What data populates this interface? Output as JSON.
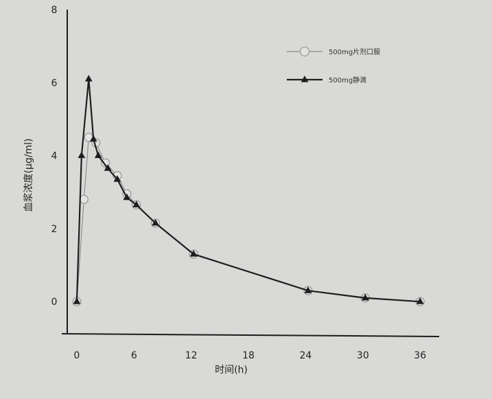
{
  "chart_data": {
    "type": "line",
    "title": "",
    "xlabel": "时间(h)",
    "ylabel": "血浆浓度(μg/ml)",
    "xlim": [
      -1,
      38
    ],
    "ylim": [
      -0.9,
      8
    ],
    "xticks": [
      "0",
      "6",
      "12",
      "18",
      "24",
      "30",
      "36"
    ],
    "yticks": [
      "0",
      "2",
      "4",
      "6",
      "8"
    ],
    "grid": false,
    "legend_position": "top-right",
    "series": [
      {
        "name": "500mg片剂口服",
        "marker": "circle",
        "color": "#999999",
        "x": [
          0,
          0.75,
          1.25,
          2,
          3,
          4.25,
          5.25,
          6.25,
          8.25,
          12.25,
          24.25,
          30.25,
          36
        ],
        "y": [
          0,
          2.8,
          4.5,
          4.35,
          3.8,
          3.45,
          2.95,
          2.65,
          2.15,
          1.3,
          0.3,
          0.1,
          0
        ]
      },
      {
        "name": "500mg静滴",
        "marker": "triangle",
        "color": "#222222",
        "x": [
          0,
          0.5,
          1.25,
          1.75,
          2.25,
          3.25,
          4.25,
          5.25,
          6.25,
          8.25,
          12.25,
          24.25,
          30.25,
          36
        ],
        "y": [
          0,
          4,
          6.1,
          4.45,
          4,
          3.65,
          3.35,
          2.85,
          2.65,
          2.15,
          1.3,
          0.3,
          0.1,
          0
        ]
      }
    ]
  }
}
